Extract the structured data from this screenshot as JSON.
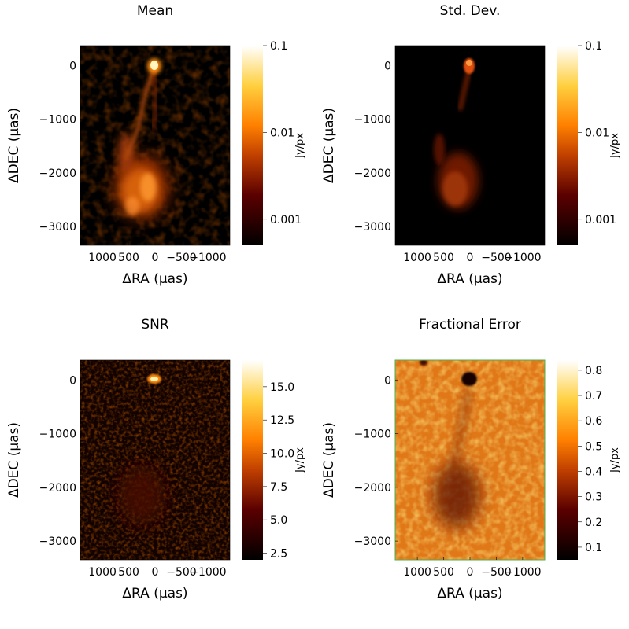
{
  "chart_data": [
    {
      "type": "heatmap",
      "title": "Mean",
      "xlabel": "ΔRA  (μas)",
      "ylabel": "ΔDEC (μas)",
      "x_ticks": [
        "1000",
        "500",
        "0",
        "−500",
        "−1000"
      ],
      "x_tick_values": [
        1000,
        500,
        0,
        -500,
        -1000
      ],
      "y_ticks": [
        "0",
        "−1000",
        "−2000",
        "−3000"
      ],
      "y_tick_values": [
        0,
        -1000,
        -2000,
        -3000
      ],
      "xlim": [
        1420,
        -1420
      ],
      "ylim": [
        -3350,
        370
      ],
      "colorbar": {
        "label": "Jy/px",
        "scale": "log",
        "range": [
          0.0005,
          0.1
        ],
        "ticks": [
          "0.1",
          "0.01",
          "0.001"
        ],
        "tick_values": [
          0.1,
          0.01,
          0.001
        ]
      },
      "colormap": "afmhot",
      "features": "bright compact core at origin with a jet extending south to an extended diffuse lobe"
    },
    {
      "type": "heatmap",
      "title": "Std. Dev.",
      "xlabel": "ΔRA  (μas)",
      "ylabel": "ΔDEC (μas)",
      "x_ticks": [
        "1000",
        "500",
        "0",
        "−500",
        "−1000"
      ],
      "x_tick_values": [
        1000,
        500,
        0,
        -500,
        -1000
      ],
      "y_ticks": [
        "0",
        "−1000",
        "−2000",
        "−3000"
      ],
      "y_tick_values": [
        0,
        -1000,
        -2000,
        -3000
      ],
      "xlim": [
        1420,
        -1420
      ],
      "ylim": [
        -3350,
        370
      ],
      "colorbar": {
        "label": "Jy/px",
        "scale": "log",
        "range": [
          0.0005,
          0.1
        ],
        "ticks": [
          "0.1",
          "0.01",
          "0.001"
        ],
        "tick_values": [
          0.1,
          0.01,
          0.001
        ]
      },
      "colormap": "afmhot"
    },
    {
      "type": "heatmap",
      "title": "SNR",
      "xlabel": "ΔRA  (μas)",
      "ylabel": "ΔDEC (μas)",
      "x_ticks": [
        "1000",
        "500",
        "0",
        "−500",
        "−1000"
      ],
      "x_tick_values": [
        1000,
        500,
        0,
        -500,
        -1000
      ],
      "y_ticks": [
        "0",
        "−1000",
        "−2000",
        "−3000"
      ],
      "y_tick_values": [
        0,
        -1000,
        -2000,
        -3000
      ],
      "xlim": [
        1420,
        -1420
      ],
      "ylim": [
        -3350,
        370
      ],
      "colorbar": {
        "label": "Jy/px",
        "scale": "linear",
        "range": [
          2.0,
          17.0
        ],
        "ticks": [
          "15.0",
          "12.5",
          "10.0",
          "7.5",
          "5.0",
          "2.5"
        ],
        "tick_values": [
          15.0,
          12.5,
          10.0,
          7.5,
          5.0,
          2.5
        ]
      },
      "colormap": "afmhot"
    },
    {
      "type": "heatmap",
      "title": "Fractional Error",
      "xlabel": "ΔRA  (μas)",
      "ylabel": "ΔDEC (μas)",
      "x_ticks": [
        "1000",
        "500",
        "0",
        "−500",
        "−1000"
      ],
      "x_tick_values": [
        1000,
        500,
        0,
        -500,
        -1000
      ],
      "y_ticks": [
        "0",
        "−1000",
        "−2000",
        "−3000"
      ],
      "y_tick_values": [
        0,
        -1000,
        -2000,
        -3000
      ],
      "xlim": [
        1420,
        -1420
      ],
      "ylim": [
        -3350,
        370
      ],
      "colorbar": {
        "label": "Jy/px",
        "scale": "linear",
        "range": [
          0.05,
          0.84
        ],
        "ticks": [
          "0.8",
          "0.7",
          "0.6",
          "0.5",
          "0.4",
          "0.3",
          "0.2",
          "0.1"
        ],
        "tick_values": [
          0.8,
          0.7,
          0.6,
          0.5,
          0.4,
          0.3,
          0.2,
          0.1
        ]
      },
      "colormap": "afmhot"
    }
  ]
}
